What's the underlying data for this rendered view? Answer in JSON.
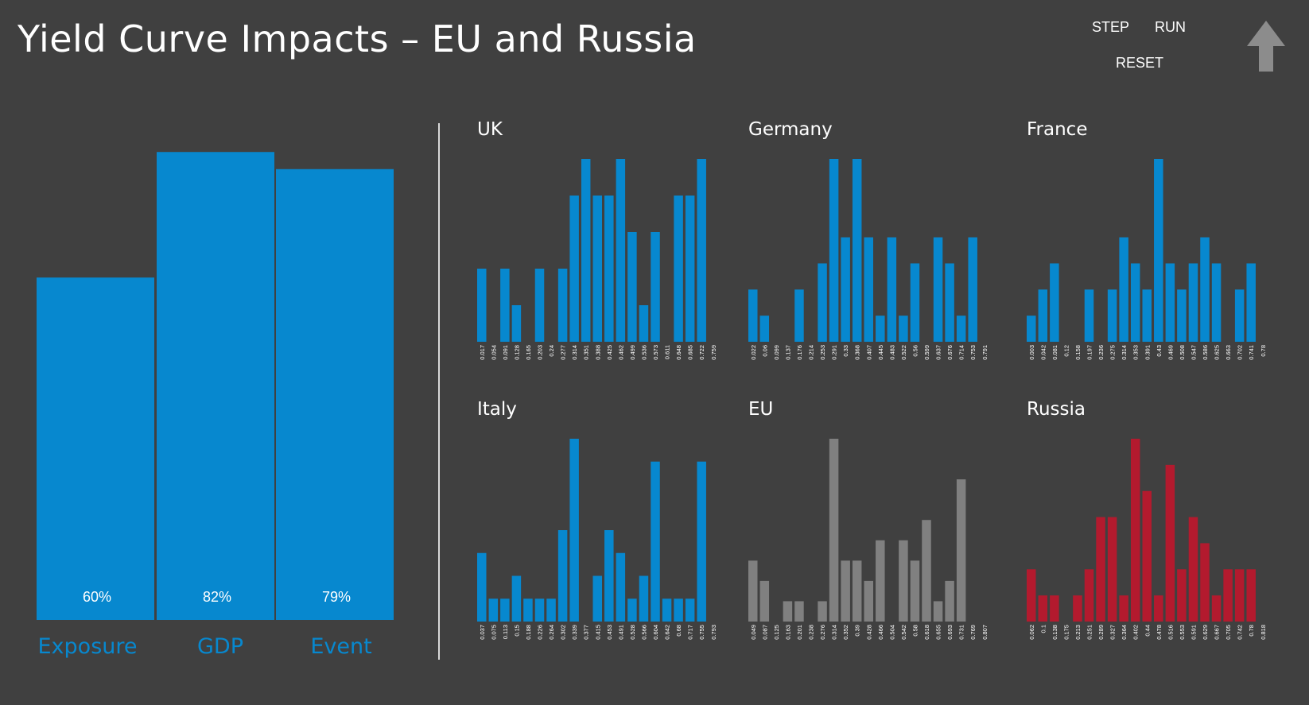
{
  "header": {
    "title": "Yield Curve Impacts – EU and Russia",
    "controls": {
      "step": "STEP",
      "run": "RUN",
      "reset": "RESET"
    },
    "up_icon": "up-arrow-icon"
  },
  "colors": {
    "background": "#404040",
    "blue": "#0788cf",
    "gray": "#808080",
    "red": "#b31a2e",
    "axis_text": "#ffffff"
  },
  "chart_data": [
    {
      "id": "main",
      "type": "bar",
      "categories": [
        "Exposure",
        "GDP",
        "Event"
      ],
      "values": [
        60,
        82,
        79
      ],
      "data_labels": [
        "60%",
        "82%",
        "79%"
      ],
      "ylim": [
        0,
        100
      ],
      "color": "#0788cf"
    },
    {
      "id": "uk",
      "type": "bar",
      "title": "UK",
      "color": "#0788cf",
      "categories": [
        "0.017",
        "0.054",
        "0.091",
        "0.128",
        "0.165",
        "0.203",
        "0.24",
        "0.277",
        "0.314",
        "0.351",
        "0.388",
        "0.425",
        "0.462",
        "0.499",
        "0.536",
        "0.573",
        "0.611",
        "0.648",
        "0.685",
        "0.722",
        "0.759"
      ],
      "values": [
        2,
        0,
        2,
        1,
        0,
        2,
        0,
        2,
        4,
        5,
        4,
        4,
        5,
        3,
        1,
        3,
        0,
        4,
        4,
        5,
        0
      ]
    },
    {
      "id": "germany",
      "type": "bar",
      "title": "Germany",
      "color": "#0788cf",
      "categories": [
        "0.022",
        "0.06",
        "0.099",
        "0.137",
        "0.176",
        "0.214",
        "0.253",
        "0.291",
        "0.33",
        "0.368",
        "0.407",
        "0.445",
        "0.483",
        "0.522",
        "0.56",
        "0.599",
        "0.637",
        "0.676",
        "0.714",
        "0.753",
        "0.791"
      ],
      "values": [
        2,
        1,
        0,
        0,
        2,
        0,
        3,
        7,
        4,
        7,
        4,
        1,
        4,
        1,
        3,
        0,
        4,
        3,
        1,
        4,
        0
      ]
    },
    {
      "id": "france",
      "type": "bar",
      "title": "France",
      "color": "#0788cf",
      "categories": [
        "0.003",
        "0.042",
        "0.081",
        "0.12",
        "0.158",
        "0.197",
        "0.236",
        "0.275",
        "0.314",
        "0.353",
        "0.391",
        "0.43",
        "0.469",
        "0.508",
        "0.547",
        "0.586",
        "0.625",
        "0.663",
        "0.702",
        "0.741",
        "0.78"
      ],
      "values": [
        1,
        2,
        3,
        0,
        0,
        2,
        0,
        2,
        4,
        3,
        2,
        7,
        3,
        2,
        3,
        4,
        3,
        0,
        2,
        3,
        0
      ]
    },
    {
      "id": "italy",
      "type": "bar",
      "title": "Italy",
      "color": "#0788cf",
      "categories": [
        "0.037",
        "0.075",
        "0.113",
        "0.15",
        "0.188",
        "0.226",
        "0.264",
        "0.302",
        "0.339",
        "0.377",
        "0.415",
        "0.453",
        "0.491",
        "0.528",
        "0.566",
        "0.604",
        "0.642",
        "0.68",
        "0.717",
        "0.755",
        "0.793"
      ],
      "values": [
        3,
        1,
        1,
        2,
        1,
        1,
        1,
        4,
        8,
        0,
        2,
        4,
        3,
        1,
        2,
        7,
        1,
        1,
        1,
        7,
        0
      ]
    },
    {
      "id": "eu",
      "type": "bar",
      "title": "EU",
      "color": "#808080",
      "categories": [
        "0.049",
        "0.087",
        "0.125",
        "0.163",
        "0.201",
        "0.238",
        "0.276",
        "0.314",
        "0.352",
        "0.39",
        "0.428",
        "0.466",
        "0.504",
        "0.542",
        "0.58",
        "0.618",
        "0.655",
        "0.693",
        "0.731",
        "0.769",
        "0.807"
      ],
      "values": [
        3,
        2,
        0,
        1,
        1,
        0,
        1,
        9,
        3,
        3,
        2,
        4,
        0,
        4,
        3,
        5,
        1,
        2,
        7,
        0,
        0
      ]
    },
    {
      "id": "russia",
      "type": "bar",
      "title": "Russia",
      "color": "#b31a2e",
      "categories": [
        "0.062",
        "0.1",
        "0.138",
        "0.175",
        "0.213",
        "0.251",
        "0.289",
        "0.327",
        "0.364",
        "0.402",
        "0.44",
        "0.478",
        "0.516",
        "0.553",
        "0.591",
        "0.629",
        "0.667",
        "0.705",
        "0.742",
        "0.78",
        "0.818"
      ],
      "values": [
        2,
        1,
        1,
        0,
        1,
        2,
        4,
        4,
        1,
        7,
        5,
        1,
        6,
        2,
        4,
        3,
        1,
        2,
        2,
        2,
        0
      ]
    }
  ]
}
